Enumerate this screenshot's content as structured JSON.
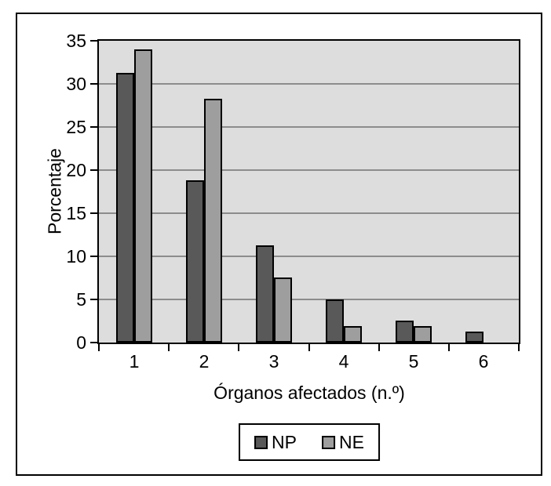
{
  "figure": {
    "background": "#ffffff",
    "border_color": "#000000"
  },
  "chart_data": {
    "type": "bar",
    "title": "",
    "categories": [
      "1",
      "2",
      "3",
      "4",
      "5",
      "6"
    ],
    "series": [
      {
        "name": "NP",
        "color": "#595959",
        "values": [
          31.3,
          18.8,
          11.3,
          5,
          2.5,
          1.3
        ]
      },
      {
        "name": "NE",
        "color": "#9e9e9e",
        "values": [
          34,
          28.3,
          7.5,
          1.9,
          1.9,
          null
        ]
      }
    ],
    "xlabel": "Órganos afectados (n.º)",
    "ylabel": "Porcentaje",
    "ylim": [
      0,
      35
    ],
    "yticks": [
      0,
      5,
      10,
      15,
      20,
      25,
      30,
      35
    ],
    "grid": true,
    "legend_position": "bottom",
    "plot_background": "#dddddd",
    "gridline_color": "#8c8c8c"
  }
}
